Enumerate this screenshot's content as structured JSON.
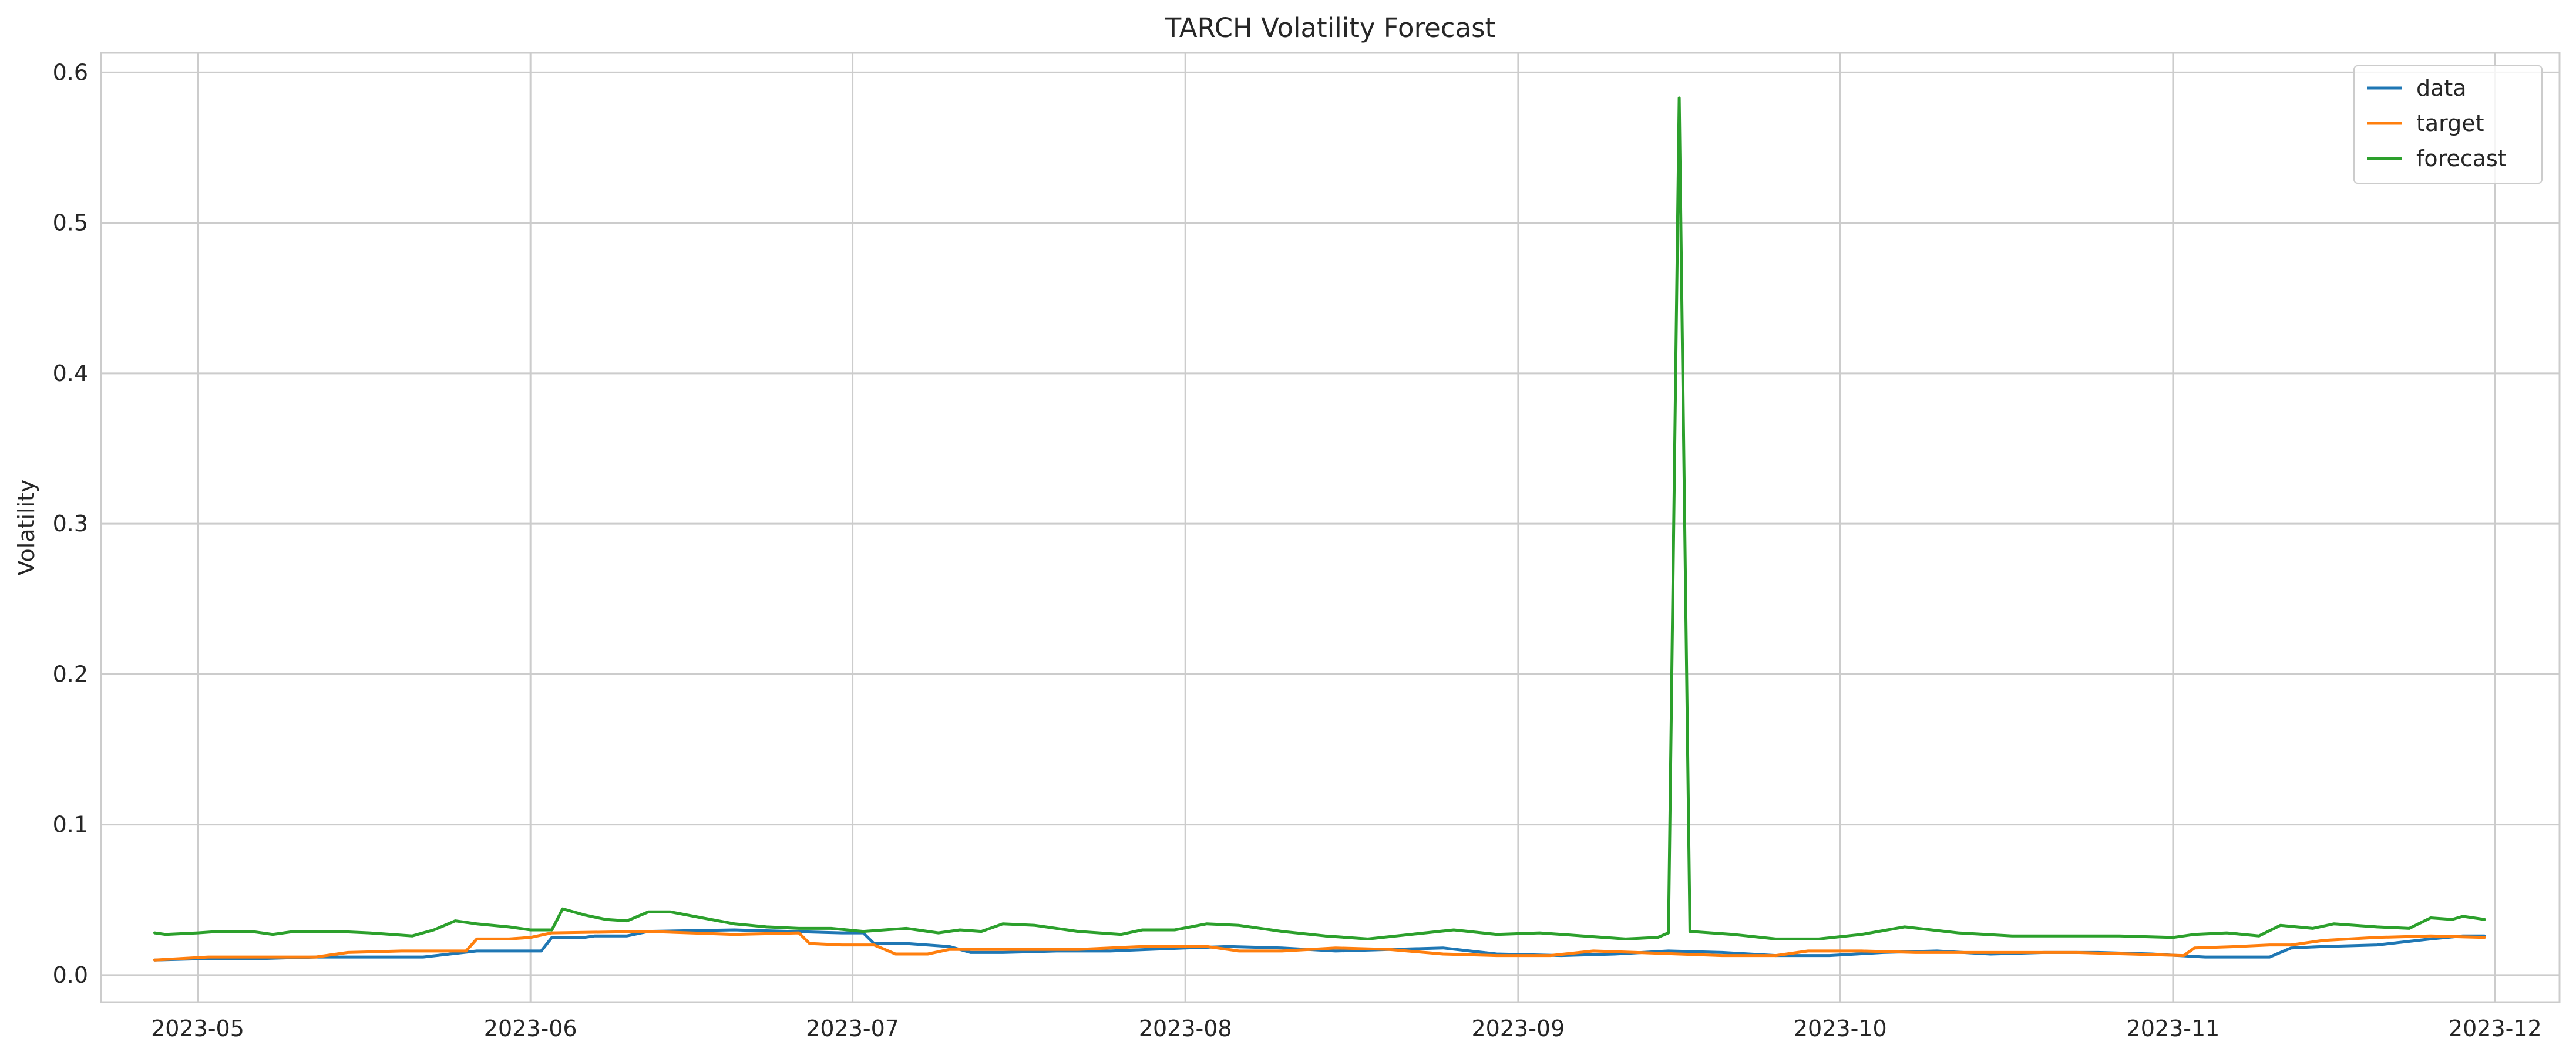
{
  "chart_data": {
    "type": "line",
    "title": "TARCH Volatility Forecast",
    "xlabel": "",
    "ylabel": "Volatility",
    "x_range": [
      "2023-04-22",
      "2023-12-07"
    ],
    "ylim": [
      -0.018,
      0.613
    ],
    "grid": true,
    "legend_position": "top-right",
    "x_ticks": [
      "2023-05",
      "2023-06",
      "2023-07",
      "2023-08",
      "2023-09",
      "2023-10",
      "2023-11",
      "2023-12"
    ],
    "y_ticks": [
      0.0,
      0.1,
      0.2,
      0.3,
      0.4,
      0.5,
      0.6
    ],
    "y_tick_labels": [
      "0.0",
      "0.1",
      "0.2",
      "0.3",
      "0.4",
      "0.5",
      "0.6"
    ],
    "series": [
      {
        "name": "data",
        "color": "#1f77b4",
        "points": [
          [
            "2023-04-27",
            0.01
          ],
          [
            "2023-05-02",
            0.011
          ],
          [
            "2023-05-07",
            0.011
          ],
          [
            "2023-05-12",
            0.012
          ],
          [
            "2023-05-17",
            0.012
          ],
          [
            "2023-05-22",
            0.012
          ],
          [
            "2023-05-27",
            0.016
          ],
          [
            "2023-05-30",
            0.016
          ],
          [
            "2023-06-01",
            0.016
          ],
          [
            "2023-06-02",
            0.016
          ],
          [
            "2023-06-03",
            0.025
          ],
          [
            "2023-06-06",
            0.025
          ],
          [
            "2023-06-07",
            0.026
          ],
          [
            "2023-06-10",
            0.026
          ],
          [
            "2023-06-12",
            0.029
          ],
          [
            "2023-06-20",
            0.03
          ],
          [
            "2023-06-30",
            0.028
          ],
          [
            "2023-07-02",
            0.028
          ],
          [
            "2023-07-03",
            0.021
          ],
          [
            "2023-07-06",
            0.021
          ],
          [
            "2023-07-10",
            0.019
          ],
          [
            "2023-07-12",
            0.015
          ],
          [
            "2023-07-15",
            0.015
          ],
          [
            "2023-07-20",
            0.016
          ],
          [
            "2023-07-25",
            0.016
          ],
          [
            "2023-08-01",
            0.018
          ],
          [
            "2023-08-05",
            0.019
          ],
          [
            "2023-08-10",
            0.018
          ],
          [
            "2023-08-15",
            0.016
          ],
          [
            "2023-08-20",
            0.017
          ],
          [
            "2023-08-25",
            0.018
          ],
          [
            "2023-08-30",
            0.014
          ],
          [
            "2023-09-05",
            0.013
          ],
          [
            "2023-09-10",
            0.014
          ],
          [
            "2023-09-15",
            0.016
          ],
          [
            "2023-09-20",
            0.015
          ],
          [
            "2023-09-25",
            0.013
          ],
          [
            "2023-09-30",
            0.013
          ],
          [
            "2023-10-05",
            0.015
          ],
          [
            "2023-10-10",
            0.016
          ],
          [
            "2023-10-15",
            0.014
          ],
          [
            "2023-10-20",
            0.015
          ],
          [
            "2023-10-25",
            0.015
          ],
          [
            "2023-10-30",
            0.014
          ],
          [
            "2023-11-04",
            0.012
          ],
          [
            "2023-11-10",
            0.012
          ],
          [
            "2023-11-12",
            0.018
          ],
          [
            "2023-11-15",
            0.019
          ],
          [
            "2023-11-20",
            0.02
          ],
          [
            "2023-11-25",
            0.024
          ],
          [
            "2023-11-28",
            0.026
          ],
          [
            "2023-11-30",
            0.026
          ]
        ]
      },
      {
        "name": "target",
        "color": "#ff7f0e",
        "points": [
          [
            "2023-04-27",
            0.01
          ],
          [
            "2023-05-02",
            0.012
          ],
          [
            "2023-05-07",
            0.012
          ],
          [
            "2023-05-12",
            0.012
          ],
          [
            "2023-05-15",
            0.015
          ],
          [
            "2023-05-20",
            0.016
          ],
          [
            "2023-05-26",
            0.016
          ],
          [
            "2023-05-27",
            0.024
          ],
          [
            "2023-05-30",
            0.024
          ],
          [
            "2023-06-01",
            0.025
          ],
          [
            "2023-06-03",
            0.028
          ],
          [
            "2023-06-12",
            0.029
          ],
          [
            "2023-06-20",
            0.027
          ],
          [
            "2023-06-26",
            0.028
          ],
          [
            "2023-06-27",
            0.021
          ],
          [
            "2023-06-30",
            0.02
          ],
          [
            "2023-07-03",
            0.02
          ],
          [
            "2023-07-05",
            0.014
          ],
          [
            "2023-07-08",
            0.014
          ],
          [
            "2023-07-10",
            0.017
          ],
          [
            "2023-07-15",
            0.017
          ],
          [
            "2023-07-22",
            0.017
          ],
          [
            "2023-07-28",
            0.019
          ],
          [
            "2023-08-03",
            0.019
          ],
          [
            "2023-08-06",
            0.016
          ],
          [
            "2023-08-10",
            0.016
          ],
          [
            "2023-08-15",
            0.018
          ],
          [
            "2023-08-20",
            0.017
          ],
          [
            "2023-08-25",
            0.014
          ],
          [
            "2023-08-30",
            0.013
          ],
          [
            "2023-09-04",
            0.013
          ],
          [
            "2023-09-08",
            0.016
          ],
          [
            "2023-09-12",
            0.015
          ],
          [
            "2023-09-16",
            0.014
          ],
          [
            "2023-09-20",
            0.013
          ],
          [
            "2023-09-25",
            0.013
          ],
          [
            "2023-09-28",
            0.016
          ],
          [
            "2023-10-03",
            0.016
          ],
          [
            "2023-10-08",
            0.015
          ],
          [
            "2023-10-13",
            0.015
          ],
          [
            "2023-10-18",
            0.015
          ],
          [
            "2023-10-23",
            0.015
          ],
          [
            "2023-10-28",
            0.014
          ],
          [
            "2023-11-02",
            0.013
          ],
          [
            "2023-11-03",
            0.018
          ],
          [
            "2023-11-07",
            0.019
          ],
          [
            "2023-11-10",
            0.02
          ],
          [
            "2023-11-12",
            0.02
          ],
          [
            "2023-11-15",
            0.023
          ],
          [
            "2023-11-20",
            0.025
          ],
          [
            "2023-11-25",
            0.026
          ],
          [
            "2023-11-30",
            0.025
          ]
        ]
      },
      {
        "name": "forecast",
        "color": "#2ca02c",
        "points": [
          [
            "2023-04-27",
            0.028
          ],
          [
            "2023-04-28",
            0.027
          ],
          [
            "2023-05-01",
            0.028
          ],
          [
            "2023-05-03",
            0.029
          ],
          [
            "2023-05-06",
            0.029
          ],
          [
            "2023-05-08",
            0.027
          ],
          [
            "2023-05-10",
            0.029
          ],
          [
            "2023-05-14",
            0.029
          ],
          [
            "2023-05-17",
            0.028
          ],
          [
            "2023-05-21",
            0.026
          ],
          [
            "2023-05-23",
            0.03
          ],
          [
            "2023-05-25",
            0.036
          ],
          [
            "2023-05-27",
            0.034
          ],
          [
            "2023-05-30",
            0.032
          ],
          [
            "2023-06-01",
            0.03
          ],
          [
            "2023-06-03",
            0.03
          ],
          [
            "2023-06-04",
            0.044
          ],
          [
            "2023-06-06",
            0.04
          ],
          [
            "2023-06-08",
            0.037
          ],
          [
            "2023-06-10",
            0.036
          ],
          [
            "2023-06-12",
            0.042
          ],
          [
            "2023-06-14",
            0.042
          ],
          [
            "2023-06-17",
            0.038
          ],
          [
            "2023-06-20",
            0.034
          ],
          [
            "2023-06-23",
            0.032
          ],
          [
            "2023-06-26",
            0.031
          ],
          [
            "2023-06-29",
            0.031
          ],
          [
            "2023-07-02",
            0.029
          ],
          [
            "2023-07-06",
            0.031
          ],
          [
            "2023-07-09",
            0.028
          ],
          [
            "2023-07-11",
            0.03
          ],
          [
            "2023-07-13",
            0.029
          ],
          [
            "2023-07-15",
            0.034
          ],
          [
            "2023-07-18",
            0.033
          ],
          [
            "2023-07-22",
            0.029
          ],
          [
            "2023-07-26",
            0.027
          ],
          [
            "2023-07-28",
            0.03
          ],
          [
            "2023-07-31",
            0.03
          ],
          [
            "2023-08-03",
            0.034
          ],
          [
            "2023-08-06",
            0.033
          ],
          [
            "2023-08-10",
            0.029
          ],
          [
            "2023-08-14",
            0.026
          ],
          [
            "2023-08-18",
            0.024
          ],
          [
            "2023-08-22",
            0.027
          ],
          [
            "2023-08-26",
            0.03
          ],
          [
            "2023-08-30",
            0.027
          ],
          [
            "2023-09-03",
            0.028
          ],
          [
            "2023-09-07",
            0.026
          ],
          [
            "2023-09-11",
            0.024
          ],
          [
            "2023-09-14",
            0.025
          ],
          [
            "2023-09-15",
            0.028
          ],
          [
            "2023-09-16",
            0.583
          ],
          [
            "2023-09-17",
            0.029
          ],
          [
            "2023-09-21",
            0.027
          ],
          [
            "2023-09-25",
            0.024
          ],
          [
            "2023-09-29",
            0.024
          ],
          [
            "2023-10-03",
            0.027
          ],
          [
            "2023-10-07",
            0.032
          ],
          [
            "2023-10-12",
            0.028
          ],
          [
            "2023-10-17",
            0.026
          ],
          [
            "2023-10-22",
            0.026
          ],
          [
            "2023-10-27",
            0.026
          ],
          [
            "2023-11-01",
            0.025
          ],
          [
            "2023-11-03",
            0.027
          ],
          [
            "2023-11-06",
            0.028
          ],
          [
            "2023-11-09",
            0.026
          ],
          [
            "2023-11-11",
            0.033
          ],
          [
            "2023-11-14",
            0.031
          ],
          [
            "2023-11-16",
            0.034
          ],
          [
            "2023-11-20",
            0.032
          ],
          [
            "2023-11-23",
            0.031
          ],
          [
            "2023-11-25",
            0.038
          ],
          [
            "2023-11-27",
            0.037
          ],
          [
            "2023-11-28",
            0.039
          ],
          [
            "2023-11-29",
            0.038
          ],
          [
            "2023-11-30",
            0.037
          ]
        ]
      }
    ]
  }
}
